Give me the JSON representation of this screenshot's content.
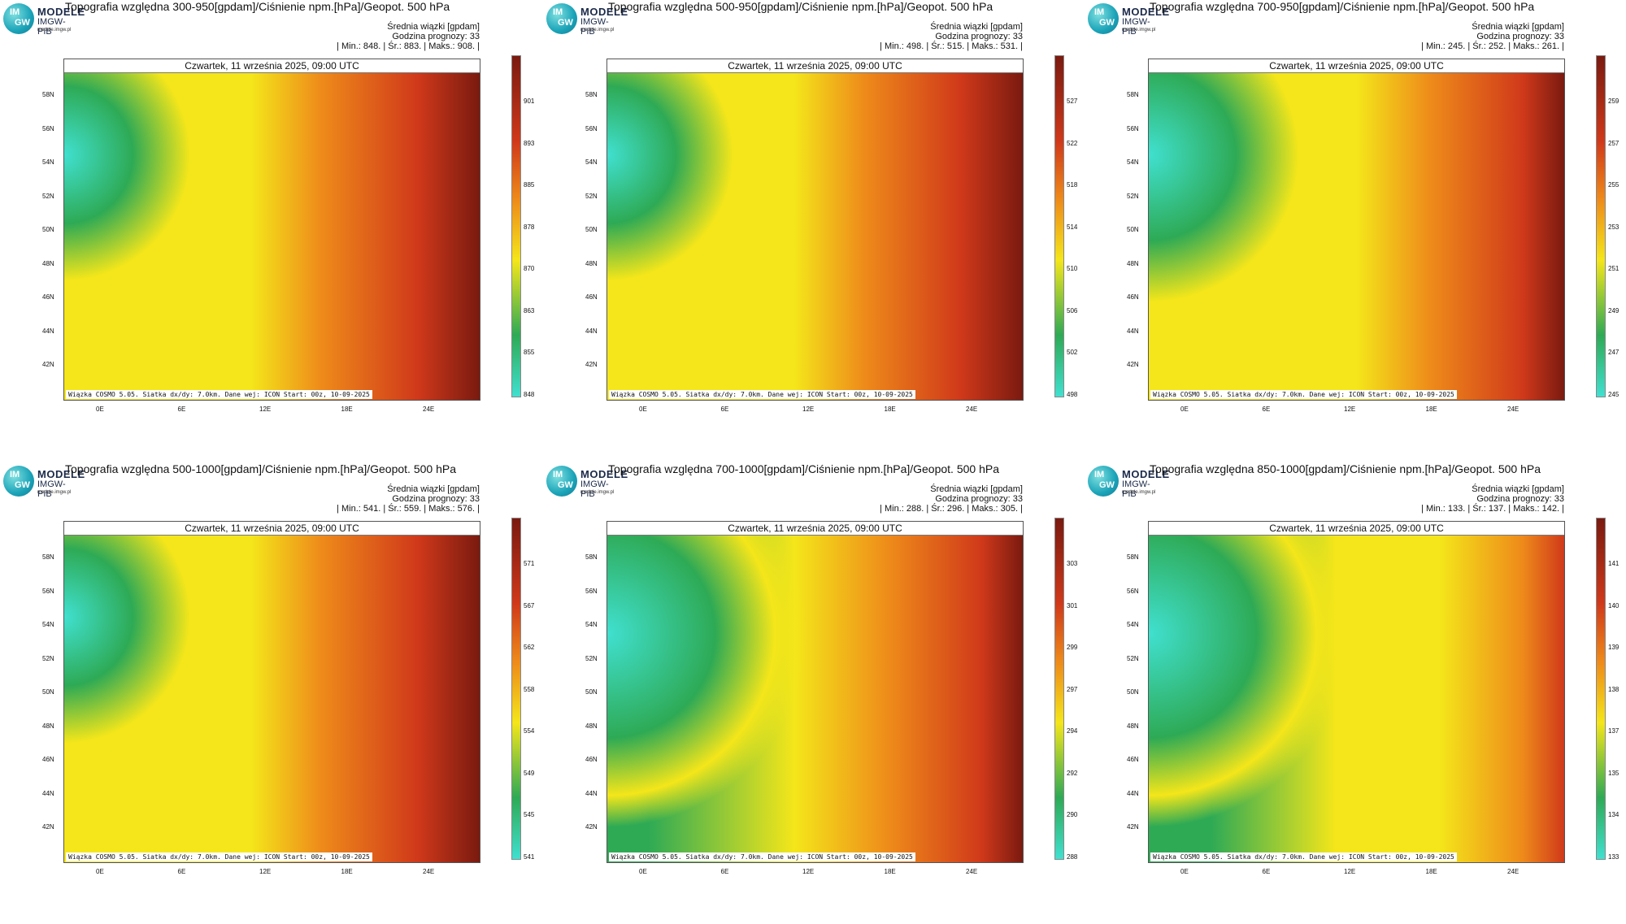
{
  "logo": {
    "line1": "MODELE",
    "line2": "IMGW-PIB",
    "line3": "modele.imgw.pl",
    "im": "IM",
    "gw": "GW"
  },
  "common": {
    "date": "Czwartek, 11 września 2025, 09:00 UTC",
    "subtitle": "Średnia wiązki [gpdam]",
    "forecast": "Godzina prognozy: 33",
    "footer": "Wiązka COSMO 5.05. Siatka dx/dy: 7.0km. Dane wej: ICON Start: 00z, 10-09-2025",
    "lat_labels": [
      "58N",
      "56N",
      "54N",
      "52N",
      "50N",
      "48N",
      "46N",
      "44N",
      "42N"
    ],
    "lon_labels": [
      "0E",
      "6E",
      "12E",
      "18E",
      "24E"
    ]
  },
  "panels": [
    {
      "title": "Topografia względna 300-950[gpdam]/Ciśnienie npm.[hPa]/Geopot. 500 hPa",
      "stats": "| Min.:   848. | Śr.:   883. | Maks.:   908. |",
      "ticks": [
        "901",
        "893",
        "885",
        "878",
        "870",
        "863",
        "855",
        "848"
      ]
    },
    {
      "title": "Topografia względna 500-950[gpdam]/Ciśnienie npm.[hPa]/Geopot. 500 hPa",
      "stats": "| Min.:   498. | Śr.:   515. | Maks.:   531. |",
      "ticks": [
        "527",
        "522",
        "518",
        "514",
        "510",
        "506",
        "502",
        "498"
      ]
    },
    {
      "title": "Topografia względna 700-950[gpdam]/Ciśnienie npm.[hPa]/Geopot. 500 hPa",
      "stats": "| Min.:   245. | Śr.:   252. | Maks.:   261. |",
      "ticks": [
        "259",
        "257",
        "255",
        "253",
        "251",
        "249",
        "247",
        "245"
      ]
    },
    {
      "title": "Topografia względna 500-1000[gpdam]/Ciśnienie npm.[hPa]/Geopot. 500 hPa",
      "stats": "| Min.:   541. | Śr.:   559. | Maks.:   576. |",
      "ticks": [
        "571",
        "567",
        "562",
        "558",
        "554",
        "549",
        "545",
        "541"
      ]
    },
    {
      "title": "Topografia względna 700-1000[gpdam]/Ciśnienie npm.[hPa]/Geopot. 500 hPa",
      "stats": "| Min.:   288. | Śr.:   296. | Maks.:   305. |",
      "ticks": [
        "303",
        "301",
        "299",
        "297",
        "294",
        "292",
        "290",
        "288"
      ]
    },
    {
      "title": "Topografia względna 850-1000[gpdam]/Ciśnienie npm.[hPa]/Geopot. 500 hPa",
      "stats": "| Min.:   133. | Śr.:   137. | Maks.:   142. |",
      "ticks": [
        "141",
        "140",
        "139",
        "138",
        "137",
        "135",
        "134",
        "133"
      ]
    }
  ],
  "colors": {
    "cold": "#40e0d0",
    "green": "#2eaa55",
    "yellow": "#f4e61a",
    "orange": "#ee8a1a",
    "red": "#d0391a",
    "darkred": "#7a1a10"
  }
}
